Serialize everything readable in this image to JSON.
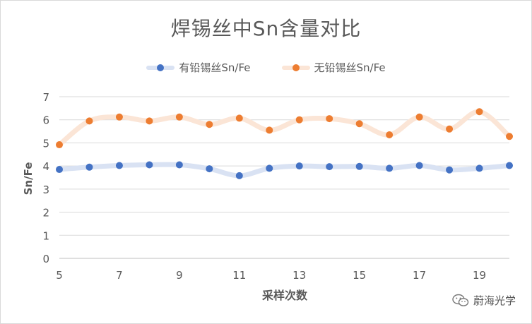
{
  "chart_data": {
    "type": "line",
    "title": "焊锡丝中Sn含量对比",
    "xlabel": "采样次数",
    "ylabel": "Sn/Fe",
    "xlim": [
      5,
      20
    ],
    "ylim": [
      0,
      7
    ],
    "xticks": [
      5,
      7,
      9,
      11,
      13,
      15,
      17,
      19
    ],
    "yticks": [
      0,
      1,
      2,
      3,
      4,
      5,
      6,
      7
    ],
    "legend_position": "top",
    "grid": "horizontal",
    "smooth": true,
    "x": [
      5,
      6,
      7,
      8,
      9,
      10,
      11,
      12,
      13,
      14,
      15,
      16,
      17,
      18,
      19,
      20
    ],
    "series": [
      {
        "name": "有铅锡丝Sn/Fe",
        "color": "#4472C4",
        "band_color": "#D9E2F3",
        "values": [
          3.85,
          3.95,
          4.02,
          4.05,
          4.05,
          3.88,
          3.58,
          3.9,
          4.0,
          3.97,
          3.98,
          3.9,
          4.02,
          3.83,
          3.9,
          4.02
        ]
      },
      {
        "name": "无铅锡丝Sn/Fe",
        "color": "#ED7D31",
        "band_color": "#FBE5D6",
        "values": [
          4.92,
          5.95,
          6.12,
          5.95,
          6.12,
          5.8,
          6.07,
          5.55,
          6.0,
          6.05,
          5.83,
          5.35,
          6.12,
          5.6,
          6.35,
          5.28
        ]
      }
    ]
  },
  "watermark": {
    "icon": "wechat-icon",
    "text": "蔚海光学"
  }
}
